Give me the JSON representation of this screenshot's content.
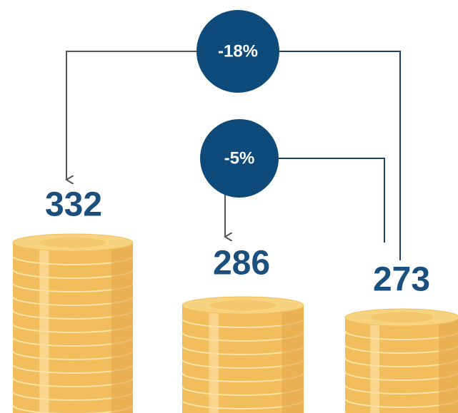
{
  "values": [
    332,
    286,
    273
  ],
  "changes": [
    "-18%",
    "-5%"
  ]
}
